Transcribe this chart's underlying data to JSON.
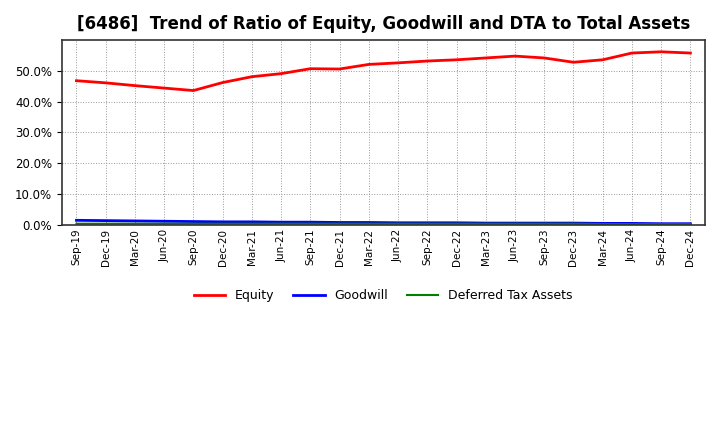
{
  "title": "[6486]  Trend of Ratio of Equity, Goodwill and DTA to Total Assets",
  "x_labels": [
    "Sep-19",
    "Dec-19",
    "Mar-20",
    "Jun-20",
    "Sep-20",
    "Dec-20",
    "Mar-21",
    "Jun-21",
    "Sep-21",
    "Dec-21",
    "Mar-22",
    "Jun-22",
    "Sep-22",
    "Dec-22",
    "Mar-23",
    "Jun-23",
    "Sep-23",
    "Dec-23",
    "Mar-24",
    "Jun-24",
    "Sep-24",
    "Dec-24"
  ],
  "equity": [
    0.468,
    0.461,
    0.452,
    0.444,
    0.436,
    0.462,
    0.481,
    0.491,
    0.507,
    0.506,
    0.521,
    0.526,
    0.532,
    0.536,
    0.542,
    0.548,
    0.542,
    0.528,
    0.536,
    0.558,
    0.562,
    0.558
  ],
  "goodwill": [
    0.014,
    0.013,
    0.012,
    0.011,
    0.01,
    0.009,
    0.009,
    0.008,
    0.008,
    0.007,
    0.007,
    0.006,
    0.006,
    0.006,
    0.005,
    0.005,
    0.005,
    0.005,
    0.004,
    0.004,
    0.003,
    0.003
  ],
  "dta": [
    0.003,
    0.003,
    0.003,
    0.003,
    0.003,
    0.003,
    0.003,
    0.003,
    0.003,
    0.003,
    0.003,
    0.003,
    0.003,
    0.003,
    0.003,
    0.003,
    0.003,
    0.003,
    0.002,
    0.002,
    0.002,
    0.002
  ],
  "equity_color": "#ff0000",
  "goodwill_color": "#0000ff",
  "dta_color": "#008000",
  "ylim": [
    0.0,
    0.6
  ],
  "yticks": [
    0.0,
    0.1,
    0.2,
    0.3,
    0.4,
    0.5
  ],
  "background_color": "#ffffff",
  "plot_bg_color": "#ffffff",
  "grid_color": "#999999",
  "title_fontsize": 12,
  "legend_labels": [
    "Equity",
    "Goodwill",
    "Deferred Tax Assets"
  ]
}
